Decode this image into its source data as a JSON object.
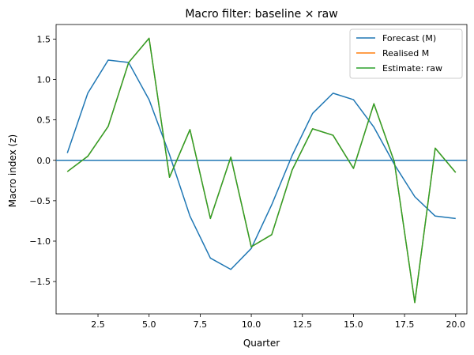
{
  "chart_data": {
    "type": "line",
    "title": "Macro filter: baseline × raw",
    "xlabel": "Quarter",
    "ylabel": "Macro index (z)",
    "xlim": [
      0.45,
      20.55
    ],
    "ylim": [
      -1.9,
      1.68
    ],
    "xticks": [
      2.5,
      5.0,
      7.5,
      10.0,
      12.5,
      15.0,
      17.5,
      20.0
    ],
    "xtick_labels": [
      "2.5",
      "5.0",
      "7.5",
      "10.0",
      "12.5",
      "15.0",
      "17.5",
      "20.0"
    ],
    "yticks": [
      -1.5,
      -1.0,
      -0.5,
      0.0,
      0.5,
      1.0,
      1.5
    ],
    "ytick_labels": [
      "−1.5",
      "−1.0",
      "−0.5",
      "0.0",
      "0.5",
      "1.0",
      "1.5"
    ],
    "grid": false,
    "legend_position": "top-right",
    "hline": {
      "y": 0.0,
      "color": "#1f77b4"
    },
    "x": [
      1,
      2,
      3,
      4,
      5,
      6,
      7,
      8,
      9,
      10,
      11,
      12,
      13,
      14,
      15,
      16,
      17,
      18,
      19,
      20
    ],
    "series": [
      {
        "name": "Forecast (M)",
        "color": "#1f77b4",
        "values": [
          0.09,
          0.83,
          1.24,
          1.21,
          0.75,
          0.07,
          -0.69,
          -1.21,
          -1.35,
          -1.09,
          -0.55,
          0.06,
          0.58,
          0.83,
          0.75,
          0.41,
          -0.05,
          -0.45,
          -0.69,
          -0.72
        ]
      },
      {
        "name": "Realised M",
        "color": "#ff7f0e",
        "values": [
          -0.14,
          0.05,
          0.42,
          1.21,
          1.51,
          -0.21,
          0.38,
          -0.72,
          0.04,
          -1.07,
          -0.92,
          -0.12,
          0.39,
          0.31,
          -0.1,
          0.7,
          -0.02,
          -1.76,
          0.15,
          -0.15
        ]
      },
      {
        "name": "Estimate: raw",
        "color": "#2ca02c",
        "values": [
          -0.14,
          0.05,
          0.42,
          1.21,
          1.51,
          -0.21,
          0.38,
          -0.72,
          0.04,
          -1.07,
          -0.92,
          -0.12,
          0.39,
          0.31,
          -0.1,
          0.7,
          -0.02,
          -1.76,
          0.15,
          -0.15
        ]
      }
    ]
  }
}
